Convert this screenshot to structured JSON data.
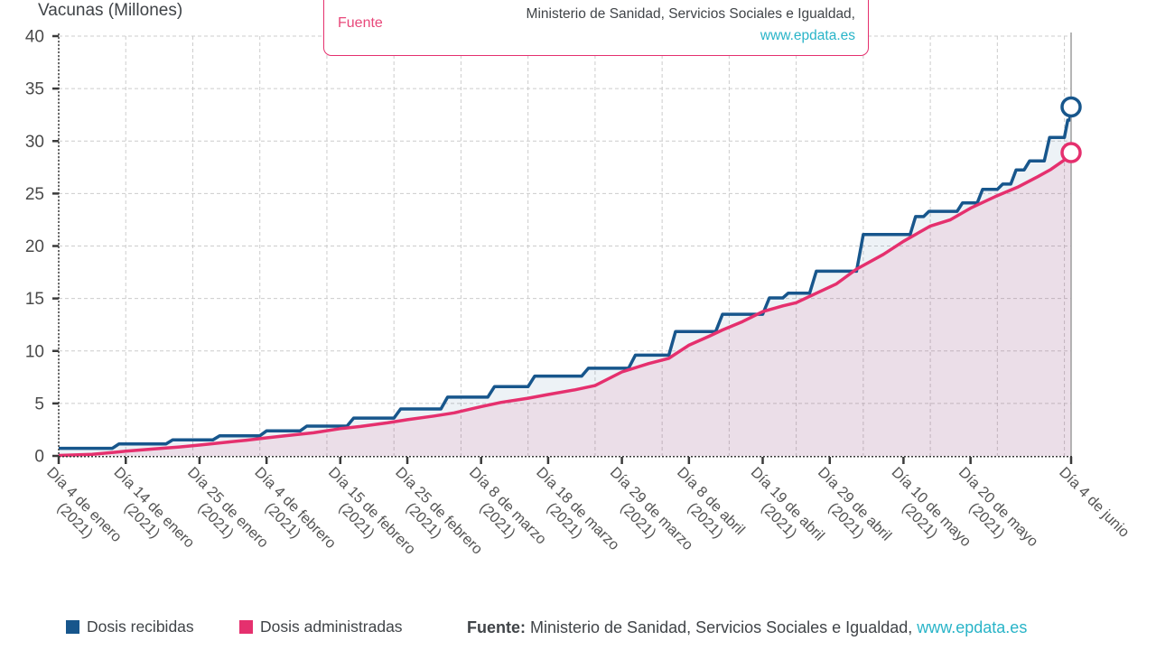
{
  "title": "Vacunas (Millones)",
  "tooltip": {
    "label": "Fuente",
    "source": "Ministerio de Sanidad, Servicios Sociales e Igualdad,",
    "link": "www.epdata.es"
  },
  "legend": {
    "items": [
      {
        "label": "Dosis recibidas",
        "color": "#17568c"
      },
      {
        "label": "Dosis administradas",
        "color": "#e5306e"
      }
    ]
  },
  "footer": {
    "label": "Fuente:",
    "source": " Ministerio de Sanidad, Servicios Sociales e Igualdad, ",
    "link": "www.epdata.es"
  },
  "colors": {
    "blue": "#17568c",
    "pink": "#e5306e",
    "teal": "#29b4c8",
    "grid": "#cccccc",
    "axis": "#3a3a3a",
    "plot_border_right": "#9e9e9e",
    "tick_label": "#4a4a4a",
    "blue_fill_opacity": 0.08,
    "pink_fill_opacity": 0.1
  },
  "chart_data": {
    "type": "area",
    "title": "Vacunas (Millones)",
    "x_unit": "days since 2021-01-04",
    "xlim": [
      0,
      151
    ],
    "ylim": [
      0,
      40
    ],
    "yticks": [
      0,
      5,
      10,
      15,
      20,
      25,
      30,
      35,
      40
    ],
    "grid": true,
    "x_gridline_step_days": 10,
    "legend_position": "bottom",
    "xticks": [
      {
        "d": 0,
        "label": "Día 4 de enero",
        "sub": "(2021)"
      },
      {
        "d": 10,
        "label": "Día 14 de enero",
        "sub": "(2021)"
      },
      {
        "d": 21,
        "label": "Día 25 de enero",
        "sub": "(2021)"
      },
      {
        "d": 31,
        "label": "Día 4 de febrero",
        "sub": "(2021)"
      },
      {
        "d": 42,
        "label": "Día 15 de febrero",
        "sub": "(2021)"
      },
      {
        "d": 52,
        "label": "Día 25 de febrero",
        "sub": "(2021)"
      },
      {
        "d": 63,
        "label": "Día 8 de marzo",
        "sub": "(2021)"
      },
      {
        "d": 73,
        "label": "Día 18 de marzo",
        "sub": "(2021)"
      },
      {
        "d": 84,
        "label": "Día 29 de marzo",
        "sub": "(2021)"
      },
      {
        "d": 94,
        "label": "Día 8 de abril",
        "sub": "(2021)"
      },
      {
        "d": 105,
        "label": "Día 19 de abril",
        "sub": "(2021)"
      },
      {
        "d": 115,
        "label": "Día 29 de abril",
        "sub": "(2021)"
      },
      {
        "d": 126,
        "label": "Día 10 de mayo",
        "sub": "(2021)"
      },
      {
        "d": 136,
        "label": "Día 20 de mayo",
        "sub": "(2021)"
      },
      {
        "d": 151,
        "label": "Día 4 de junio",
        "sub": ""
      }
    ],
    "series": [
      {
        "name": "Dosis recibidas",
        "color": "#17568c",
        "step": true,
        "end_value": 33.25,
        "points": [
          [
            0,
            0.72
          ],
          [
            8,
            0.72
          ],
          [
            9,
            1.14
          ],
          [
            16,
            1.14
          ],
          [
            17,
            1.52
          ],
          [
            23,
            1.52
          ],
          [
            24,
            1.92
          ],
          [
            30,
            1.92
          ],
          [
            31,
            2.38
          ],
          [
            36,
            2.38
          ],
          [
            37,
            2.84
          ],
          [
            43,
            2.84
          ],
          [
            44,
            3.6
          ],
          [
            50,
            3.6
          ],
          [
            51,
            4.47
          ],
          [
            57,
            4.47
          ],
          [
            58,
            5.6
          ],
          [
            64,
            5.6
          ],
          [
            65,
            6.6
          ],
          [
            70,
            6.6
          ],
          [
            71,
            7.6
          ],
          [
            78,
            7.6
          ],
          [
            79,
            8.35
          ],
          [
            85,
            8.35
          ],
          [
            86,
            9.6
          ],
          [
            91,
            9.6
          ],
          [
            92,
            11.85
          ],
          [
            98,
            11.85
          ],
          [
            99,
            13.5
          ],
          [
            105,
            13.5
          ],
          [
            106,
            15.05
          ],
          [
            108,
            15.05
          ],
          [
            108.8,
            15.5
          ],
          [
            112,
            15.5
          ],
          [
            113,
            17.6
          ],
          [
            119,
            17.6
          ],
          [
            120,
            21.1
          ],
          [
            127,
            21.1
          ],
          [
            127.8,
            22.8
          ],
          [
            129,
            22.8
          ],
          [
            129.8,
            23.3
          ],
          [
            134,
            23.3
          ],
          [
            134.8,
            24.1
          ],
          [
            137,
            24.1
          ],
          [
            137.8,
            25.4
          ],
          [
            140,
            25.4
          ],
          [
            140.8,
            25.9
          ],
          [
            142,
            25.9
          ],
          [
            142.8,
            27.25
          ],
          [
            144,
            27.25
          ],
          [
            144.8,
            28.1
          ],
          [
            147,
            28.1
          ],
          [
            147.8,
            30.35
          ],
          [
            150,
            30.35
          ],
          [
            150.5,
            32.0
          ],
          [
            150.8,
            32.0
          ],
          [
            151,
            33.25
          ]
        ]
      },
      {
        "name": "Dosis administradas",
        "color": "#e5306e",
        "step": false,
        "end_value": 28.9,
        "points": [
          [
            0,
            0.04
          ],
          [
            5,
            0.15
          ],
          [
            10,
            0.45
          ],
          [
            14,
            0.65
          ],
          [
            18,
            0.85
          ],
          [
            21,
            1.03
          ],
          [
            25,
            1.3
          ],
          [
            28,
            1.5
          ],
          [
            31,
            1.72
          ],
          [
            35,
            2.0
          ],
          [
            38,
            2.2
          ],
          [
            42,
            2.6
          ],
          [
            45,
            2.8
          ],
          [
            49,
            3.15
          ],
          [
            52,
            3.45
          ],
          [
            56,
            3.8
          ],
          [
            59,
            4.1
          ],
          [
            63,
            4.7
          ],
          [
            66,
            5.1
          ],
          [
            70,
            5.5
          ],
          [
            73,
            5.85
          ],
          [
            77,
            6.3
          ],
          [
            80,
            6.7
          ],
          [
            84,
            8.0
          ],
          [
            88,
            8.8
          ],
          [
            91,
            9.3
          ],
          [
            94,
            10.55
          ],
          [
            97,
            11.4
          ],
          [
            99,
            12.0
          ],
          [
            102,
            12.8
          ],
          [
            105,
            13.75
          ],
          [
            108,
            14.3
          ],
          [
            110,
            14.6
          ],
          [
            113,
            15.5
          ],
          [
            116,
            16.4
          ],
          [
            119,
            17.8
          ],
          [
            123,
            19.2
          ],
          [
            126,
            20.45
          ],
          [
            130,
            21.9
          ],
          [
            133,
            22.5
          ],
          [
            136,
            23.6
          ],
          [
            140,
            24.8
          ],
          [
            143,
            25.6
          ],
          [
            146,
            26.6
          ],
          [
            148,
            27.3
          ],
          [
            150,
            28.2
          ],
          [
            151,
            28.9
          ]
        ]
      }
    ]
  }
}
